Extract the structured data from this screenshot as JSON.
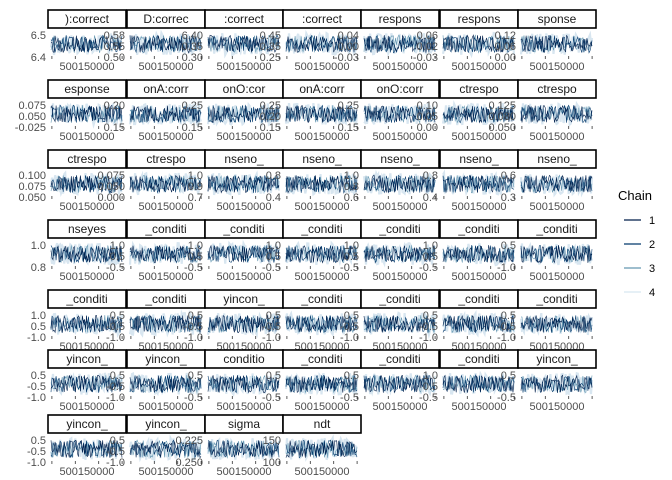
{
  "chart_data": {
    "type": "line",
    "legend": {
      "title": "Chain",
      "placement": "right",
      "entries": [
        {
          "label": "1",
          "color": "#011f4b"
        },
        {
          "label": "2",
          "color": "#03396c"
        },
        {
          "label": "3",
          "color": "#6497b1"
        },
        {
          "label": "4",
          "color": "#d8e6f0"
        }
      ]
    },
    "x_tick_label": "500150000",
    "panels": [
      {
        "label": "):correct",
        "yticks": [
          "6.5",
          "6.4"
        ]
      },
      {
        "label": "D:correc",
        "yticks": [
          "0.58",
          "0.55",
          "0.50"
        ]
      },
      {
        "label": ":correct",
        "yticks": [
          "6.40",
          "0.35",
          "0.30"
        ]
      },
      {
        "label": ":correct",
        "yticks": [
          "0.45",
          "0.35",
          "0.25"
        ]
      },
      {
        "label": "respons",
        "yticks": [
          "0.04",
          "0.00",
          "-0.03"
        ]
      },
      {
        "label": "respons",
        "yticks": [
          "0.06",
          "0.02",
          "-0.03"
        ]
      },
      {
        "label": "sponse",
        "yticks": [
          "0.12",
          "0.06",
          "0.00"
        ]
      },
      {
        "label": "esponse",
        "yticks": [
          "0.075",
          "0.050",
          "-0.025"
        ]
      },
      {
        "label": "onA:corr",
        "yticks": [
          "0.20",
          "0.15"
        ]
      },
      {
        "label": "onO:cor",
        "yticks": [
          "0.25",
          "0.15"
        ]
      },
      {
        "label": "onA:corr",
        "yticks": [
          "0.25",
          "0.20",
          "0.15"
        ]
      },
      {
        "label": "onO:corr",
        "yticks": [
          "0.25",
          "0.15"
        ]
      },
      {
        "label": "ctrespo",
        "yticks": [
          "0.10",
          "0.05",
          "0.00"
        ]
      },
      {
        "label": "ctrespo",
        "yticks": [
          "0.125",
          "0.080",
          "0.050"
        ]
      },
      {
        "label": "ctrespo",
        "yticks": [
          "0.100",
          "0.075",
          "0.050"
        ]
      },
      {
        "label": "ctrespo",
        "yticks": [
          "0.075",
          "0.050",
          "0.000"
        ]
      },
      {
        "label": "nseno_",
        "yticks": [
          "1.0",
          "0.9",
          "0.7"
        ]
      },
      {
        "label": "nseno_",
        "yticks": [
          "0.8",
          "0.4"
        ]
      },
      {
        "label": "nseno_",
        "yticks": [
          "1.0",
          "0.8",
          "0.6"
        ]
      },
      {
        "label": "nseno_",
        "yticks": [
          "0.8",
          "0.4"
        ]
      },
      {
        "label": "nseno_",
        "yticks": [
          "0.6",
          "0.3"
        ]
      },
      {
        "label": "nseyes",
        "yticks": [
          "1.0",
          "0.8"
        ]
      },
      {
        "label": "_conditi",
        "yticks": [
          "1.0",
          "0.5",
          "-0.5"
        ]
      },
      {
        "label": "_conditi",
        "yticks": [
          "1.0",
          "0.5",
          "-0.5"
        ]
      },
      {
        "label": "_conditi",
        "yticks": [
          "1.0",
          "0.5",
          "-0.5"
        ]
      },
      {
        "label": "_conditi",
        "yticks": [
          "1.0",
          "0.5",
          "-0.5"
        ]
      },
      {
        "label": "_conditi",
        "yticks": [
          "1.0",
          "0.5",
          "-0.5"
        ]
      },
      {
        "label": "_conditi",
        "yticks": [
          "0.5",
          "-1.0"
        ]
      },
      {
        "label": "_conditi",
        "yticks": [
          "1.0",
          "0.5",
          "-1.0"
        ]
      },
      {
        "label": "_conditi",
        "yticks": [
          "0.5",
          "-0.5",
          "-1.0"
        ]
      },
      {
        "label": "yincon_",
        "yticks": [
          "0.5",
          "-0.5",
          "-1.0"
        ]
      },
      {
        "label": "_conditi",
        "yticks": [
          "0.5",
          "-0.5",
          "-1.0"
        ]
      },
      {
        "label": "_conditi",
        "yticks": [
          "0.5",
          "-0.5",
          "-1.0"
        ]
      },
      {
        "label": "_conditi",
        "yticks": [
          "0.5",
          "-0.5",
          "-1.0"
        ]
      },
      {
        "label": "_conditi",
        "yticks": [
          "0.5",
          "-0.5",
          "-1.0"
        ]
      },
      {
        "label": "yincon_",
        "yticks": [
          "0.5",
          "-0.5",
          "-1.0"
        ]
      },
      {
        "label": "yincon_",
        "yticks": [
          "0.5",
          "-0.5",
          "-1.0"
        ]
      },
      {
        "label": "conditio",
        "yticks": [
          "0.5",
          "-0.5"
        ]
      },
      {
        "label": "_conditi",
        "yticks": [
          "0.5",
          "-0.5"
        ]
      },
      {
        "label": "_conditi",
        "yticks": [
          "0.5",
          "-0.5"
        ]
      },
      {
        "label": "_conditi",
        "yticks": [
          "1.0",
          "0.5",
          "-0.5"
        ]
      },
      {
        "label": "yincon_",
        "yticks": [
          "0.5",
          "-0.5"
        ]
      },
      {
        "label": "yincon_",
        "yticks": [
          "0.5",
          "-0.5",
          "-1.0"
        ]
      },
      {
        "label": "yincon_",
        "yticks": [
          "0.5",
          "-0.5",
          "-1.0"
        ]
      },
      {
        "label": "sigma",
        "yticks": [
          "0.225",
          "0.250"
        ]
      },
      {
        "label": "ndt",
        "yticks": [
          "150",
          "100"
        ]
      }
    ]
  }
}
